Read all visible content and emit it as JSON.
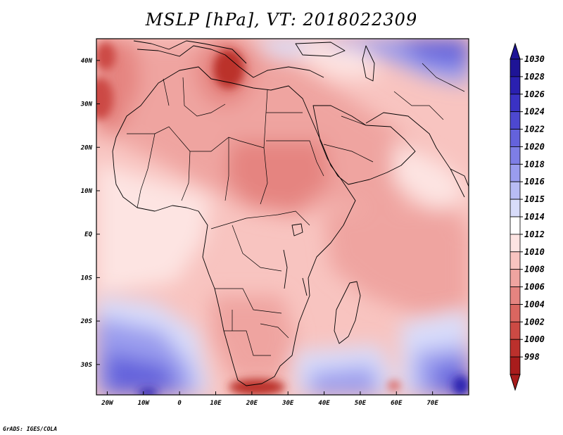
{
  "title": "MSLP [hPa], VT: 2018022309",
  "credit": "GrADS: IGES/COLA",
  "map": {
    "lon_range": [
      -23,
      80
    ],
    "lat_range": [
      -37,
      45
    ],
    "lon_ticks": [
      {
        "lon": -20,
        "label": "20W"
      },
      {
        "lon": -10,
        "label": "10W"
      },
      {
        "lon": 0,
        "label": "0"
      },
      {
        "lon": 10,
        "label": "10E"
      },
      {
        "lon": 20,
        "label": "20E"
      },
      {
        "lon": 30,
        "label": "30E"
      },
      {
        "lon": 40,
        "label": "40E"
      },
      {
        "lon": 50,
        "label": "50E"
      },
      {
        "lon": 60,
        "label": "60E"
      },
      {
        "lon": 70,
        "label": "70E"
      }
    ],
    "lat_ticks": [
      {
        "lat": 40,
        "label": "40N"
      },
      {
        "lat": 30,
        "label": "30N"
      },
      {
        "lat": 20,
        "label": "20N"
      },
      {
        "lat": 10,
        "label": "10N"
      },
      {
        "lat": 0,
        "label": "EQ"
      },
      {
        "lat": -10,
        "label": "10S"
      },
      {
        "lat": -20,
        "label": "20S"
      },
      {
        "lat": -30,
        "label": "30S"
      }
    ]
  },
  "colorbar": {
    "levels": [
      {
        "label": "1030",
        "color": "#1e1496"
      },
      {
        "label": "1028",
        "color": "#2a20b0"
      },
      {
        "label": "1026",
        "color": "#3a32c4"
      },
      {
        "label": "1024",
        "color": "#4d48d0"
      },
      {
        "label": "1022",
        "color": "#6462dc"
      },
      {
        "label": "1020",
        "color": "#7e7ee6"
      },
      {
        "label": "1018",
        "color": "#9a9cee"
      },
      {
        "label": "1016",
        "color": "#b8bcf4"
      },
      {
        "label": "1015",
        "color": "#d8dcfa"
      },
      {
        "label": "1014",
        "color": "#ffffff"
      },
      {
        "label": "1012",
        "color": "#fde4e2"
      },
      {
        "label": "1010",
        "color": "#f8c4c0"
      },
      {
        "label": "1008",
        "color": "#efa4a0"
      },
      {
        "label": "1006",
        "color": "#e58480"
      },
      {
        "label": "1004",
        "color": "#da6660"
      },
      {
        "label": "1002",
        "color": "#cc4a44"
      },
      {
        "label": "1000",
        "color": "#bb302c"
      },
      {
        "label": "998",
        "color": "#a81c1c"
      }
    ]
  }
}
